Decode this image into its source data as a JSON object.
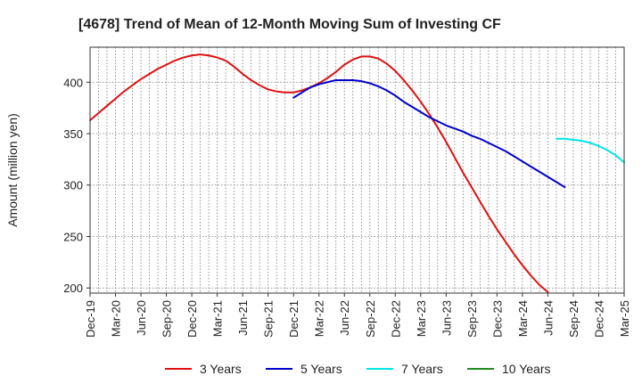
{
  "chart_data": {
    "type": "line",
    "title": "[4678]  Trend of Mean of 12-Month Moving Sum of Investing CF",
    "xlabel": "",
    "ylabel": "Amount (million yen)",
    "ylim": [
      195,
      434
    ],
    "yticks": [
      200,
      250,
      300,
      350,
      400
    ],
    "x_tick_labels": [
      "Dec-19",
      "Mar-20",
      "Jun-20",
      "Sep-20",
      "Dec-20",
      "Mar-21",
      "Jun-21",
      "Sep-21",
      "Dec-21",
      "Mar-22",
      "Jun-22",
      "Sep-22",
      "Dec-22",
      "Mar-23",
      "Jun-23",
      "Sep-23",
      "Dec-23",
      "Mar-24",
      "Jun-24",
      "Sep-24",
      "Dec-24",
      "Mar-25"
    ],
    "x_month_count": 63,
    "grid": true,
    "legend_position": "bottom",
    "series": [
      {
        "name": "3 Years",
        "color": "#dd1111",
        "start_month": 0,
        "values": [
          363,
          370,
          377,
          384,
          391,
          397,
          403,
          408,
          413,
          417,
          421,
          424,
          426,
          427,
          426,
          424,
          421,
          415,
          408,
          402,
          397,
          393,
          391,
          390,
          390,
          392,
          395,
          399,
          404,
          410,
          417,
          422,
          425,
          425,
          423,
          418,
          411,
          402,
          392,
          381,
          369,
          356,
          342,
          327,
          312,
          298,
          284,
          270,
          257,
          245,
          233,
          222,
          212,
          203,
          196
        ]
      },
      {
        "name": "5 Years",
        "color": "#0000cc",
        "start_month": 24,
        "values": [
          385,
          390,
          395,
          398,
          400,
          402,
          402,
          402,
          401,
          399,
          396,
          392,
          387,
          381,
          376,
          371,
          366,
          362,
          358,
          355,
          352,
          348,
          345,
          341,
          337,
          333,
          328,
          323,
          318,
          313,
          308,
          303,
          298
        ]
      },
      {
        "name": "7 Years",
        "color": "#00e5e5",
        "start_month": 55,
        "values": [
          345,
          345,
          344,
          343,
          341,
          338,
          334,
          329,
          322
        ]
      },
      {
        "name": "10 Years",
        "color": "#228b22",
        "start_month": 0,
        "values": []
      }
    ]
  }
}
